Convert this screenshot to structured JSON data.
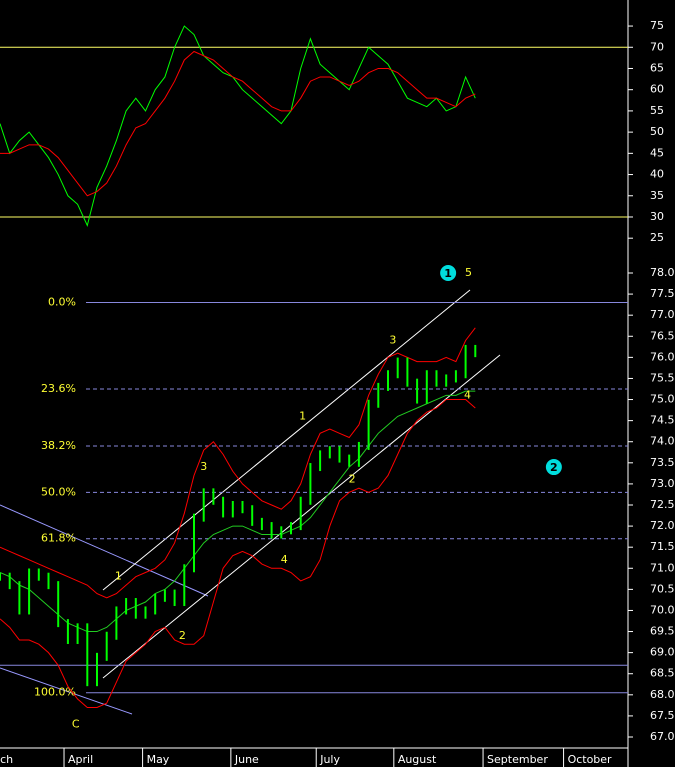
{
  "chart_data": [
    {
      "type": "line",
      "name_hint": null,
      "x": [
        0,
        1,
        2,
        3,
        4,
        5,
        6,
        7,
        8,
        9,
        10,
        11,
        12,
        13,
        14,
        15,
        16,
        17,
        18,
        19,
        20,
        21,
        22,
        23,
        24,
        25,
        26,
        27,
        28,
        29,
        30,
        31,
        32,
        33,
        34,
        35,
        36,
        37,
        38,
        39,
        40,
        41,
        42,
        43,
        44,
        45,
        46,
        47,
        48,
        49
      ],
      "series": [
        {
          "color": "#00ff00",
          "values": [
            52,
            45,
            48,
            50,
            47,
            44,
            40,
            35,
            33,
            28,
            37,
            42,
            48,
            55,
            58,
            55,
            60,
            63,
            70,
            75,
            73,
            68,
            66,
            64,
            63,
            60,
            58,
            56,
            54,
            52,
            55,
            65,
            72,
            66,
            64,
            62,
            60,
            65,
            70,
            68,
            66,
            62,
            58,
            57,
            56,
            58,
            55,
            56,
            63,
            58
          ]
        },
        {
          "color": "#ff0000",
          "values": [
            45,
            45,
            46,
            47,
            47,
            46,
            44,
            41,
            38,
            35,
            36,
            38,
            42,
            47,
            51,
            52,
            55,
            58,
            62,
            67,
            69,
            68,
            67,
            65,
            63,
            62,
            60,
            58,
            56,
            55,
            55,
            58,
            62,
            63,
            63,
            62,
            61,
            62,
            64,
            65,
            65,
            64,
            62,
            60,
            58,
            58,
            57,
            56,
            58,
            59
          ]
        }
      ],
      "levels": [
        70,
        30
      ],
      "level_color": "#ffff66",
      "ylim": [
        22.5,
        78.5
      ],
      "yticks": [
        25,
        30,
        35,
        40,
        45,
        50,
        55,
        60,
        65,
        70,
        75
      ]
    },
    {
      "type": "price",
      "x": [
        0,
        1,
        2,
        3,
        4,
        5,
        6,
        7,
        8,
        9,
        10,
        11,
        12,
        13,
        14,
        15,
        16,
        17,
        18,
        19,
        20,
        21,
        22,
        23,
        24,
        25,
        26,
        27,
        28,
        29,
        30,
        31,
        32,
        33,
        34,
        35,
        36,
        37,
        38,
        39,
        40,
        41,
        42,
        43,
        44,
        45,
        46,
        47,
        48,
        49
      ],
      "series": [
        {
          "color": "#00ff00",
          "values": [
            70.8,
            70.6,
            70.0,
            70.9,
            70.8,
            70.6,
            69.7,
            69.3,
            69.6,
            68.3,
            68.9,
            69.4,
            70.0,
            70.2,
            69.9,
            70.0,
            70.3,
            70.4,
            70.2,
            71.0,
            72.2,
            72.8,
            72.6,
            72.3,
            72.5,
            72.4,
            72.1,
            72.0,
            71.8,
            71.9,
            72.0,
            72.6,
            73.4,
            73.7,
            73.8,
            73.6,
            73.5,
            73.9,
            74.9,
            75.3,
            75.6,
            75.9,
            75.4,
            75.0,
            75.6,
            75.4,
            75.5,
            75.6,
            76.2,
            76.1
          ]
        },
        {
          "color": "#ff0000",
          "values": [
            71.5,
            71.4,
            71.3,
            71.2,
            71.1,
            71.0,
            70.9,
            70.8,
            70.7,
            70.6,
            70.4,
            70.3,
            70.4,
            70.6,
            70.8,
            70.9,
            71.0,
            71.2,
            71.6,
            72.3,
            73.2,
            73.8,
            74.0,
            73.7,
            73.3,
            73.0,
            72.8,
            72.6,
            72.5,
            72.4,
            72.6,
            73.0,
            73.7,
            74.2,
            74.3,
            74.2,
            74.1,
            74.4,
            75.1,
            75.6,
            76.0,
            76.1,
            76.0,
            75.9,
            75.9,
            75.9,
            76.0,
            75.9,
            76.4,
            76.7
          ]
        },
        {
          "color": "#ff0000",
          "values": [
            69.8,
            69.6,
            69.3,
            69.3,
            69.2,
            69.0,
            68.7,
            68.2,
            67.9,
            67.7,
            67.7,
            67.8,
            68.3,
            68.8,
            69.0,
            69.2,
            69.5,
            69.6,
            69.3,
            69.2,
            69.2,
            69.4,
            70.2,
            71.0,
            71.3,
            71.4,
            71.3,
            71.1,
            71.0,
            71.0,
            70.9,
            70.7,
            70.8,
            71.2,
            72.0,
            72.6,
            72.8,
            72.9,
            72.8,
            72.9,
            73.2,
            73.7,
            74.2,
            74.5,
            74.7,
            74.8,
            75.0,
            75.0,
            75.0,
            74.8
          ]
        },
        {
          "color": "#22cc22",
          "values": [
            70.9,
            70.8,
            70.6,
            70.5,
            70.3,
            70.1,
            69.9,
            69.7,
            69.6,
            69.5,
            69.5,
            69.6,
            69.8,
            70.0,
            70.1,
            70.2,
            70.4,
            70.5,
            70.7,
            71.0,
            71.3,
            71.6,
            71.8,
            71.9,
            72.0,
            72.0,
            71.9,
            71.8,
            71.8,
            71.8,
            71.9,
            72.0,
            72.2,
            72.5,
            72.8,
            73.1,
            73.4,
            73.6,
            73.9,
            74.2,
            74.4,
            74.6,
            74.7,
            74.8,
            74.9,
            75.0,
            75.1,
            75.1,
            75.2,
            75.2
          ]
        }
      ],
      "fib_levels": [
        {
          "value": 77.3,
          "label": "0.0%"
        },
        {
          "value": 75.25,
          "label": "23.6%"
        },
        {
          "value": 73.9,
          "label": "38.2%"
        },
        {
          "value": 72.8,
          "label": "50.0%"
        },
        {
          "value": 71.7,
          "label": "61.8%"
        },
        {
          "value": 68.05,
          "label": "100.0%"
        }
      ],
      "extra_levels": [
        68.7
      ],
      "wave_labels": [
        {
          "text": "1",
          "x": 12.2,
          "y": 70.8
        },
        {
          "text": "2",
          "x": 18.8,
          "y": 69.4
        },
        {
          "text": "3",
          "x": 21.0,
          "y": 73.4
        },
        {
          "text": "4",
          "x": 29.3,
          "y": 71.2
        },
        {
          "text": "1",
          "x": 31.2,
          "y": 74.6
        },
        {
          "text": "2",
          "x": 36.3,
          "y": 73.1
        },
        {
          "text": "3",
          "x": 40.5,
          "y": 76.4
        },
        {
          "text": "4",
          "x": 48.2,
          "y": 75.1
        },
        {
          "text": "5",
          "x": 48.3,
          "y": 78.0
        },
        {
          "text": "C",
          "x": 7.8,
          "y": 67.3
        }
      ],
      "circled": [
        {
          "text": "1",
          "x": 46.2,
          "y": 78.0
        },
        {
          "text": "2",
          "x": 57.1,
          "y": 73.4
        }
      ],
      "ylim": [
        66.7,
        78.3
      ],
      "yticks": [
        {
          "value": 67.0,
          "label": "67.0"
        },
        {
          "value": 67.5,
          "label": "67.5"
        },
        {
          "value": 68.0,
          "label": "68.0"
        },
        {
          "value": 68.5,
          "label": "68.5"
        },
        {
          "value": 69.0,
          "label": "69.0"
        },
        {
          "value": 69.5,
          "label": "69.5"
        },
        {
          "value": 70.0,
          "label": "70.0"
        },
        {
          "value": 70.5,
          "label": "70.5"
        },
        {
          "value": 71.0,
          "label": "71.0"
        },
        {
          "value": 71.5,
          "label": "71.5"
        },
        {
          "value": 72.0,
          "label": "72.0"
        },
        {
          "value": 72.5,
          "label": "72.5"
        },
        {
          "value": 73.0,
          "label": "73.0"
        },
        {
          "value": 73.5,
          "label": "73.5"
        },
        {
          "value": 74.0,
          "label": "74.0"
        },
        {
          "value": 74.5,
          "label": "74.5"
        },
        {
          "value": 75.0,
          "label": "75.0"
        },
        {
          "value": 75.5,
          "label": "75.5"
        },
        {
          "value": 76.0,
          "label": "76.0"
        },
        {
          "value": 76.5,
          "label": "76.5"
        },
        {
          "value": 77.0,
          "label": "77.0"
        },
        {
          "value": 77.5,
          "label": "77.5"
        },
        {
          "value": 78.0,
          "label": "78.0"
        }
      ],
      "months": [
        {
          "label": "ch",
          "x": -0.4
        },
        {
          "label": "April",
          "x": 6.6
        },
        {
          "label": "May",
          "x": 14.7
        },
        {
          "label": "June",
          "x": 23.8
        },
        {
          "label": "July",
          "x": 32.6
        },
        {
          "label": "August",
          "x": 40.6
        },
        {
          "label": "September",
          "x": 49.8
        },
        {
          "label": "October",
          "x": 58.1
        }
      ]
    }
  ]
}
